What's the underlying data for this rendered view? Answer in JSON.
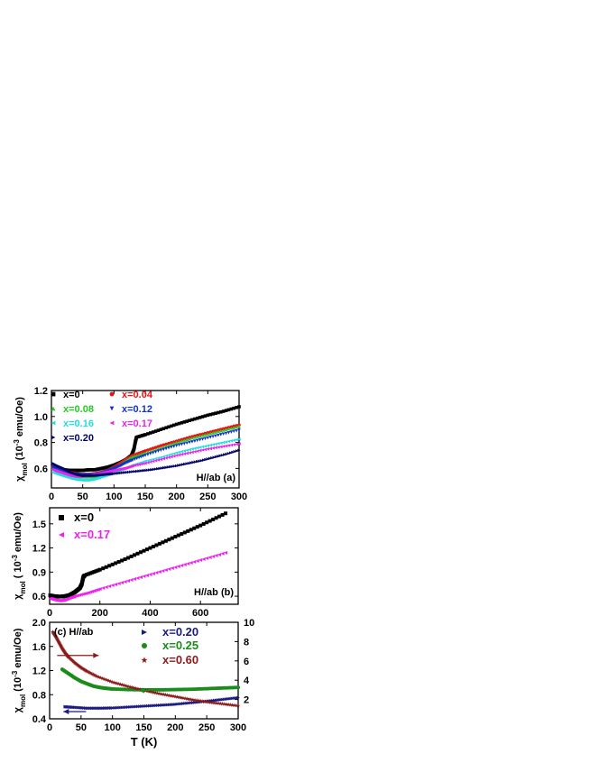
{
  "chart_data": [
    {
      "type": "scatter",
      "panel_label": "(a)",
      "annotation": "H//ab (a)",
      "ylabel": "χmol (10-3 emu/Oe)",
      "xlabel": "",
      "xlim": [
        0,
        300
      ],
      "ylim": [
        0.45,
        1.2
      ],
      "xticks": [
        0,
        50,
        100,
        150,
        200,
        250,
        300
      ],
      "yticks": [
        0.6,
        0.8,
        1.0,
        1.2
      ],
      "ytick_labels": [
        "0.6",
        "0.8",
        "1.0",
        "1.2"
      ],
      "grid": false,
      "legend_position": "top-left",
      "series": [
        {
          "name": "x=0",
          "color": "#000000",
          "marker": "square",
          "points": [
            [
              2,
              0.6
            ],
            [
              10,
              0.595
            ],
            [
              20,
              0.59
            ],
            [
              30,
              0.585
            ],
            [
              40,
              0.585
            ],
            [
              50,
              0.585
            ],
            [
              60,
              0.59
            ],
            [
              70,
              0.59
            ],
            [
              80,
              0.6
            ],
            [
              90,
              0.61
            ],
            [
              100,
              0.625
            ],
            [
              110,
              0.645
            ],
            [
              120,
              0.67
            ],
            [
              128,
              0.7
            ],
            [
              132,
              0.75
            ],
            [
              134,
              0.8
            ],
            [
              136,
              0.84
            ],
            [
              150,
              0.86
            ],
            [
              175,
              0.9
            ],
            [
              200,
              0.94
            ],
            [
              225,
              0.975
            ],
            [
              250,
              1.01
            ],
            [
              275,
              1.04
            ],
            [
              300,
              1.075
            ]
          ]
        },
        {
          "name": "x=0.04",
          "color": "#ee1111",
          "marker": "circle",
          "points": [
            [
              2,
              0.61
            ],
            [
              10,
              0.6
            ],
            [
              20,
              0.58
            ],
            [
              30,
              0.57
            ],
            [
              40,
              0.56
            ],
            [
              50,
              0.555
            ],
            [
              60,
              0.555
            ],
            [
              70,
              0.56
            ],
            [
              80,
              0.57
            ],
            [
              90,
              0.585
            ],
            [
              100,
              0.61
            ],
            [
              110,
              0.64
            ],
            [
              120,
              0.67
            ],
            [
              130,
              0.7
            ],
            [
              150,
              0.735
            ],
            [
              175,
              0.775
            ],
            [
              200,
              0.81
            ],
            [
              225,
              0.845
            ],
            [
              250,
              0.875
            ],
            [
              275,
              0.905
            ],
            [
              300,
              0.935
            ]
          ]
        },
        {
          "name": "x=0.08",
          "color": "#22cc22",
          "marker": "triangle-up",
          "points": [
            [
              2,
              0.6
            ],
            [
              10,
              0.585
            ],
            [
              20,
              0.565
            ],
            [
              30,
              0.55
            ],
            [
              40,
              0.54
            ],
            [
              50,
              0.535
            ],
            [
              60,
              0.535
            ],
            [
              70,
              0.54
            ],
            [
              80,
              0.555
            ],
            [
              90,
              0.575
            ],
            [
              100,
              0.6
            ],
            [
              110,
              0.63
            ],
            [
              120,
              0.66
            ],
            [
              130,
              0.69
            ],
            [
              150,
              0.72
            ],
            [
              175,
              0.76
            ],
            [
              200,
              0.8
            ],
            [
              225,
              0.835
            ],
            [
              250,
              0.865
            ],
            [
              275,
              0.895
            ],
            [
              300,
              0.925
            ]
          ]
        },
        {
          "name": "x=0.12",
          "color": "#1133cc",
          "marker": "triangle-down",
          "points": [
            [
              2,
              0.61
            ],
            [
              10,
              0.6
            ],
            [
              20,
              0.58
            ],
            [
              30,
              0.565
            ],
            [
              40,
              0.555
            ],
            [
              50,
              0.55
            ],
            [
              60,
              0.55
            ],
            [
              70,
              0.555
            ],
            [
              80,
              0.565
            ],
            [
              90,
              0.58
            ],
            [
              100,
              0.6
            ],
            [
              110,
              0.62
            ],
            [
              120,
              0.645
            ],
            [
              130,
              0.665
            ],
            [
              150,
              0.7
            ],
            [
              175,
              0.74
            ],
            [
              200,
              0.775
            ],
            [
              225,
              0.805
            ],
            [
              250,
              0.835
            ],
            [
              275,
              0.865
            ],
            [
              300,
              0.895
            ]
          ]
        },
        {
          "name": "x=0.16",
          "color": "#22dddd",
          "marker": "triangle-left",
          "points": [
            [
              2,
              0.57
            ],
            [
              10,
              0.555
            ],
            [
              20,
              0.54
            ],
            [
              30,
              0.525
            ],
            [
              40,
              0.515
            ],
            [
              50,
              0.51
            ],
            [
              60,
              0.51
            ],
            [
              70,
              0.52
            ],
            [
              80,
              0.535
            ],
            [
              90,
              0.55
            ],
            [
              100,
              0.565
            ],
            [
              110,
              0.585
            ],
            [
              120,
              0.605
            ],
            [
              130,
              0.625
            ],
            [
              150,
              0.655
            ],
            [
              175,
              0.685
            ],
            [
              200,
              0.72
            ],
            [
              225,
              0.75
            ],
            [
              250,
              0.775
            ],
            [
              275,
              0.8
            ],
            [
              300,
              0.825
            ]
          ]
        },
        {
          "name": "x=0.17",
          "color": "#ee22ee",
          "marker": "triangle-left",
          "points": [
            [
              2,
              0.59
            ],
            [
              10,
              0.575
            ],
            [
              20,
              0.56
            ],
            [
              30,
              0.545
            ],
            [
              40,
              0.54
            ],
            [
              50,
              0.54
            ],
            [
              60,
              0.545
            ],
            [
              70,
              0.555
            ],
            [
              80,
              0.565
            ],
            [
              90,
              0.575
            ],
            [
              100,
              0.585
            ],
            [
              110,
              0.595
            ],
            [
              120,
              0.605
            ],
            [
              130,
              0.62
            ],
            [
              150,
              0.64
            ],
            [
              175,
              0.67
            ],
            [
              200,
              0.7
            ],
            [
              225,
              0.725
            ],
            [
              250,
              0.75
            ],
            [
              275,
              0.77
            ],
            [
              300,
              0.79
            ]
          ]
        },
        {
          "name": "x=0.20",
          "color": "#000066",
          "marker": "triangle-right",
          "points": [
            [
              2,
              0.64
            ],
            [
              10,
              0.62
            ],
            [
              20,
              0.6
            ],
            [
              30,
              0.575
            ],
            [
              40,
              0.555
            ],
            [
              50,
              0.545
            ],
            [
              60,
              0.545
            ],
            [
              70,
              0.545
            ],
            [
              80,
              0.55
            ],
            [
              90,
              0.555
            ],
            [
              100,
              0.56
            ],
            [
              120,
              0.57
            ],
            [
              140,
              0.58
            ],
            [
              160,
              0.59
            ],
            [
              180,
              0.605
            ],
            [
              200,
              0.62
            ],
            [
              220,
              0.64
            ],
            [
              240,
              0.66
            ],
            [
              260,
              0.685
            ],
            [
              280,
              0.71
            ],
            [
              300,
              0.74
            ]
          ]
        }
      ]
    },
    {
      "type": "scatter",
      "panel_label": "(b)",
      "annotation": "H//ab (b)",
      "ylabel": "χmol ( 10-3 emu/Oe)",
      "xlabel": "",
      "xlim": [
        0,
        750
      ],
      "ylim": [
        0.5,
        1.7
      ],
      "xticks": [
        0,
        200,
        400,
        600
      ],
      "yticks": [
        0.6,
        0.9,
        1.2,
        1.5
      ],
      "ytick_labels": [
        "0.6",
        "0.9",
        "1.2",
        "1.5"
      ],
      "grid": false,
      "legend_position": "top-left",
      "series": [
        {
          "name": "x=0",
          "color": "#000000",
          "marker": "square",
          "points": [
            [
              2,
              0.61
            ],
            [
              20,
              0.6
            ],
            [
              40,
              0.595
            ],
            [
              60,
              0.6
            ],
            [
              80,
              0.615
            ],
            [
              100,
              0.65
            ],
            [
              120,
              0.7
            ],
            [
              128,
              0.75
            ],
            [
              134,
              0.84
            ],
            [
              140,
              0.86
            ],
            [
              200,
              0.93
            ],
            [
              300,
              1.06
            ],
            [
              400,
              1.2
            ],
            [
              500,
              1.34
            ],
            [
              600,
              1.48
            ],
            [
              700,
              1.63
            ]
          ]
        },
        {
          "name": "x=0.17",
          "color": "#ee22ee",
          "marker": "triangle-left",
          "points": [
            [
              2,
              0.57
            ],
            [
              20,
              0.555
            ],
            [
              40,
              0.545
            ],
            [
              60,
              0.555
            ],
            [
              80,
              0.58
            ],
            [
              100,
              0.6
            ],
            [
              150,
              0.64
            ],
            [
              200,
              0.69
            ],
            [
              300,
              0.78
            ],
            [
              400,
              0.87
            ],
            [
              500,
              0.96
            ],
            [
              600,
              1.05
            ],
            [
              700,
              1.14
            ]
          ]
        }
      ]
    },
    {
      "type": "scatter",
      "panel_label": "(c) H//ab",
      "ylabel": "χmol (10-3 emu/Oe)",
      "xlabel": "T (K)",
      "xlim": [
        0,
        300
      ],
      "ylim": [
        0.4,
        2.0
      ],
      "y2lim": [
        0,
        10
      ],
      "xticks": [
        0,
        50,
        100,
        150,
        200,
        250,
        300
      ],
      "yticks": [
        0.4,
        0.8,
        1.2,
        1.6,
        2.0
      ],
      "ytick_labels": [
        "0.4",
        "0.8",
        "1.2",
        "1.6",
        "2.0"
      ],
      "y2ticks": [
        2,
        4,
        6,
        8,
        10
      ],
      "grid": false,
      "legend_position": "top-right",
      "series": [
        {
          "name": "x=0.20",
          "color": "#1a1a80",
          "marker": "triangle-right",
          "axis": "left",
          "points": [
            [
              25,
              0.6
            ],
            [
              40,
              0.59
            ],
            [
              60,
              0.575
            ],
            [
              80,
              0.575
            ],
            [
              100,
              0.58
            ],
            [
              125,
              0.595
            ],
            [
              150,
              0.61
            ],
            [
              175,
              0.625
            ],
            [
              200,
              0.64
            ],
            [
              225,
              0.665
            ],
            [
              250,
              0.69
            ],
            [
              275,
              0.72
            ],
            [
              300,
              0.75
            ]
          ]
        },
        {
          "name": "x=0.25",
          "color": "#1a8c1a",
          "marker": "circle",
          "axis": "left",
          "points": [
            [
              20,
              1.22
            ],
            [
              30,
              1.15
            ],
            [
              40,
              1.08
            ],
            [
              50,
              1.02
            ],
            [
              60,
              0.98
            ],
            [
              70,
              0.94
            ],
            [
              80,
              0.92
            ],
            [
              90,
              0.905
            ],
            [
              100,
              0.895
            ],
            [
              125,
              0.885
            ],
            [
              150,
              0.88
            ],
            [
              175,
              0.88
            ],
            [
              200,
              0.885
            ],
            [
              225,
              0.89
            ],
            [
              250,
              0.9
            ],
            [
              275,
              0.91
            ],
            [
              300,
              0.92
            ]
          ]
        },
        {
          "name": "x=0.60",
          "color": "#8b1a1a",
          "marker": "star",
          "axis": "right",
          "points": [
            [
              5,
              9.0
            ],
            [
              10,
              8.5
            ],
            [
              15,
              7.9
            ],
            [
              20,
              7.3
            ],
            [
              25,
              6.8
            ],
            [
              30,
              6.4
            ],
            [
              40,
              5.8
            ],
            [
              50,
              5.3
            ],
            [
              60,
              4.9
            ],
            [
              75,
              4.4
            ],
            [
              100,
              3.8
            ],
            [
              125,
              3.35
            ],
            [
              150,
              2.95
            ],
            [
              175,
              2.6
            ],
            [
              200,
              2.3
            ],
            [
              225,
              2.0
            ],
            [
              250,
              1.75
            ],
            [
              275,
              1.55
            ],
            [
              300,
              1.35
            ]
          ]
        }
      ]
    }
  ]
}
